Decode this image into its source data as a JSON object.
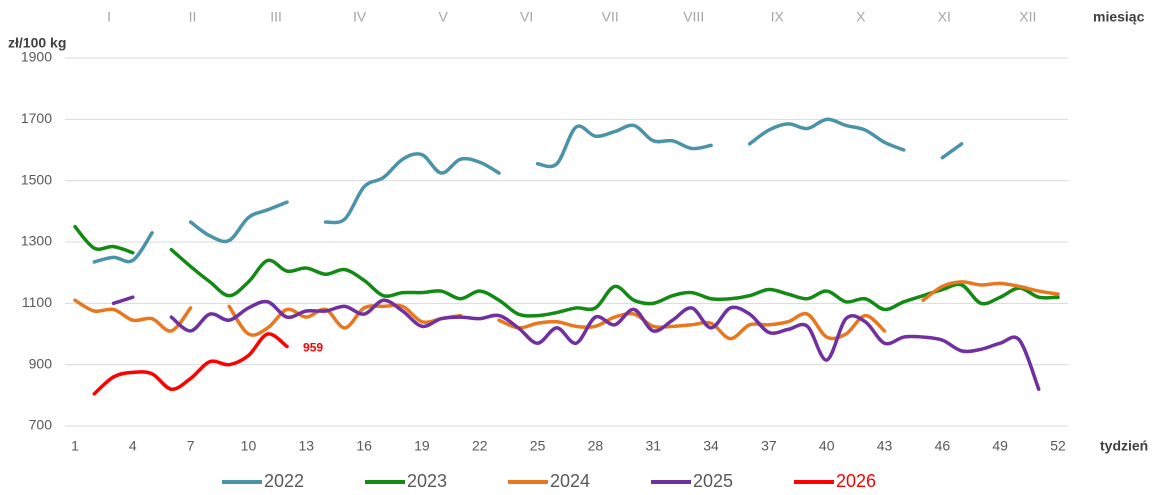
{
  "chart_data": {
    "type": "line",
    "y_label": "zł/100 kg",
    "x_label": "tydzień",
    "month_label": "miesiąc",
    "months": [
      "I",
      "II",
      "III",
      "IV",
      "V",
      "VI",
      "VII",
      "VIII",
      "IX",
      "X",
      "XI",
      "XII"
    ],
    "x": [
      1,
      2,
      3,
      4,
      5,
      6,
      7,
      8,
      9,
      10,
      11,
      12,
      13,
      14,
      15,
      16,
      17,
      18,
      19,
      20,
      21,
      22,
      23,
      24,
      25,
      26,
      27,
      28,
      29,
      30,
      31,
      32,
      33,
      34,
      35,
      36,
      37,
      38,
      39,
      40,
      41,
      42,
      43,
      44,
      45,
      46,
      47,
      48,
      49,
      50,
      51,
      52
    ],
    "xlim": [
      1,
      52
    ],
    "xticks": [
      1,
      4,
      7,
      10,
      13,
      16,
      19,
      22,
      25,
      28,
      31,
      34,
      37,
      40,
      43,
      46,
      49,
      52
    ],
    "ylim": [
      700,
      1900
    ],
    "yticks": [
      700,
      900,
      1100,
      1300,
      1500,
      1700,
      1900
    ],
    "grid": true,
    "legend": "bottom",
    "series": [
      {
        "name": "2022",
        "color": "#4a93a8",
        "values": [
          null,
          1235,
          1250,
          1240,
          1330,
          null,
          1365,
          1320,
          1305,
          1380,
          1405,
          1430,
          null,
          1365,
          1375,
          1480,
          1510,
          1570,
          1585,
          1525,
          1570,
          1560,
          1525,
          null,
          1555,
          1555,
          1675,
          1645,
          1660,
          1680,
          1630,
          1630,
          1605,
          1615,
          null,
          1620,
          1665,
          1685,
          1670,
          1700,
          1680,
          1665,
          1625,
          1600,
          null,
          1575,
          1620,
          null,
          null,
          null,
          null,
          null
        ]
      },
      {
        "name": "2023",
        "color": "#138a13",
        "values": [
          1350,
          1280,
          1285,
          1265,
          null,
          1275,
          1220,
          1170,
          1125,
          1170,
          1240,
          1205,
          1215,
          1195,
          1210,
          1175,
          1125,
          1135,
          1135,
          1140,
          1115,
          1140,
          1110,
          1065,
          1060,
          1070,
          1085,
          1085,
          1155,
          1110,
          1100,
          1125,
          1135,
          1115,
          1115,
          1125,
          1145,
          1130,
          1115,
          1140,
          1105,
          1115,
          1080,
          1105,
          1125,
          1145,
          1160,
          1100,
          1120,
          1150,
          1120,
          1120
        ]
      },
      {
        "name": "2024",
        "color": "#e8771f",
        "values": [
          1110,
          1075,
          1080,
          1045,
          1050,
          1010,
          1085,
          null,
          1090,
          1000,
          1020,
          1080,
          1055,
          1080,
          1020,
          1085,
          1090,
          1090,
          1040,
          1050,
          1060,
          null,
          1045,
          1020,
          1035,
          1040,
          1025,
          1025,
          1055,
          1065,
          1025,
          1025,
          1030,
          1035,
          985,
          1030,
          1030,
          1040,
          1065,
          990,
          1000,
          1060,
          1010,
          null,
          1110,
          1155,
          1170,
          1160,
          1165,
          1155,
          1140,
          1130
        ]
      },
      {
        "name": "2025",
        "color": "#7030a0",
        "values": [
          null,
          null,
          1100,
          1120,
          null,
          1055,
          1010,
          1065,
          1045,
          1085,
          1105,
          1055,
          1075,
          1075,
          1090,
          1065,
          1110,
          1075,
          1025,
          1050,
          1055,
          1050,
          1060,
          1020,
          970,
          1020,
          970,
          1055,
          1030,
          1080,
          1010,
          1045,
          1085,
          1020,
          1085,
          1065,
          1005,
          1015,
          1025,
          915,
          1050,
          1040,
          970,
          990,
          990,
          980,
          945,
          950,
          970,
          980,
          820,
          null
        ]
      },
      {
        "name": "2026",
        "color": "#ff0000",
        "legend_text_color": "#ff0000",
        "values": [
          null,
          805,
          860,
          875,
          870,
          820,
          855,
          910,
          900,
          930,
          1000,
          959,
          null,
          null,
          null,
          null,
          null,
          null,
          null,
          null,
          null,
          null,
          null,
          null,
          null,
          null,
          null,
          null,
          null,
          null,
          null,
          null,
          null,
          null,
          null,
          null,
          null,
          null,
          null,
          null,
          null,
          null,
          null,
          null,
          null,
          null,
          null,
          null,
          null,
          null,
          null,
          null
        ],
        "value_labels": [
          null,
          null,
          null,
          null,
          null,
          null,
          null,
          null,
          null,
          null,
          null,
          "959",
          null,
          null,
          null,
          null,
          null,
          null,
          null,
          null,
          null,
          null,
          null,
          null,
          null,
          null,
          null,
          null,
          null,
          null,
          null,
          null,
          null,
          null,
          null,
          null,
          null,
          null,
          null,
          null,
          null,
          null,
          null,
          null,
          null,
          null,
          null,
          null,
          null,
          null,
          null,
          null
        ]
      }
    ]
  }
}
